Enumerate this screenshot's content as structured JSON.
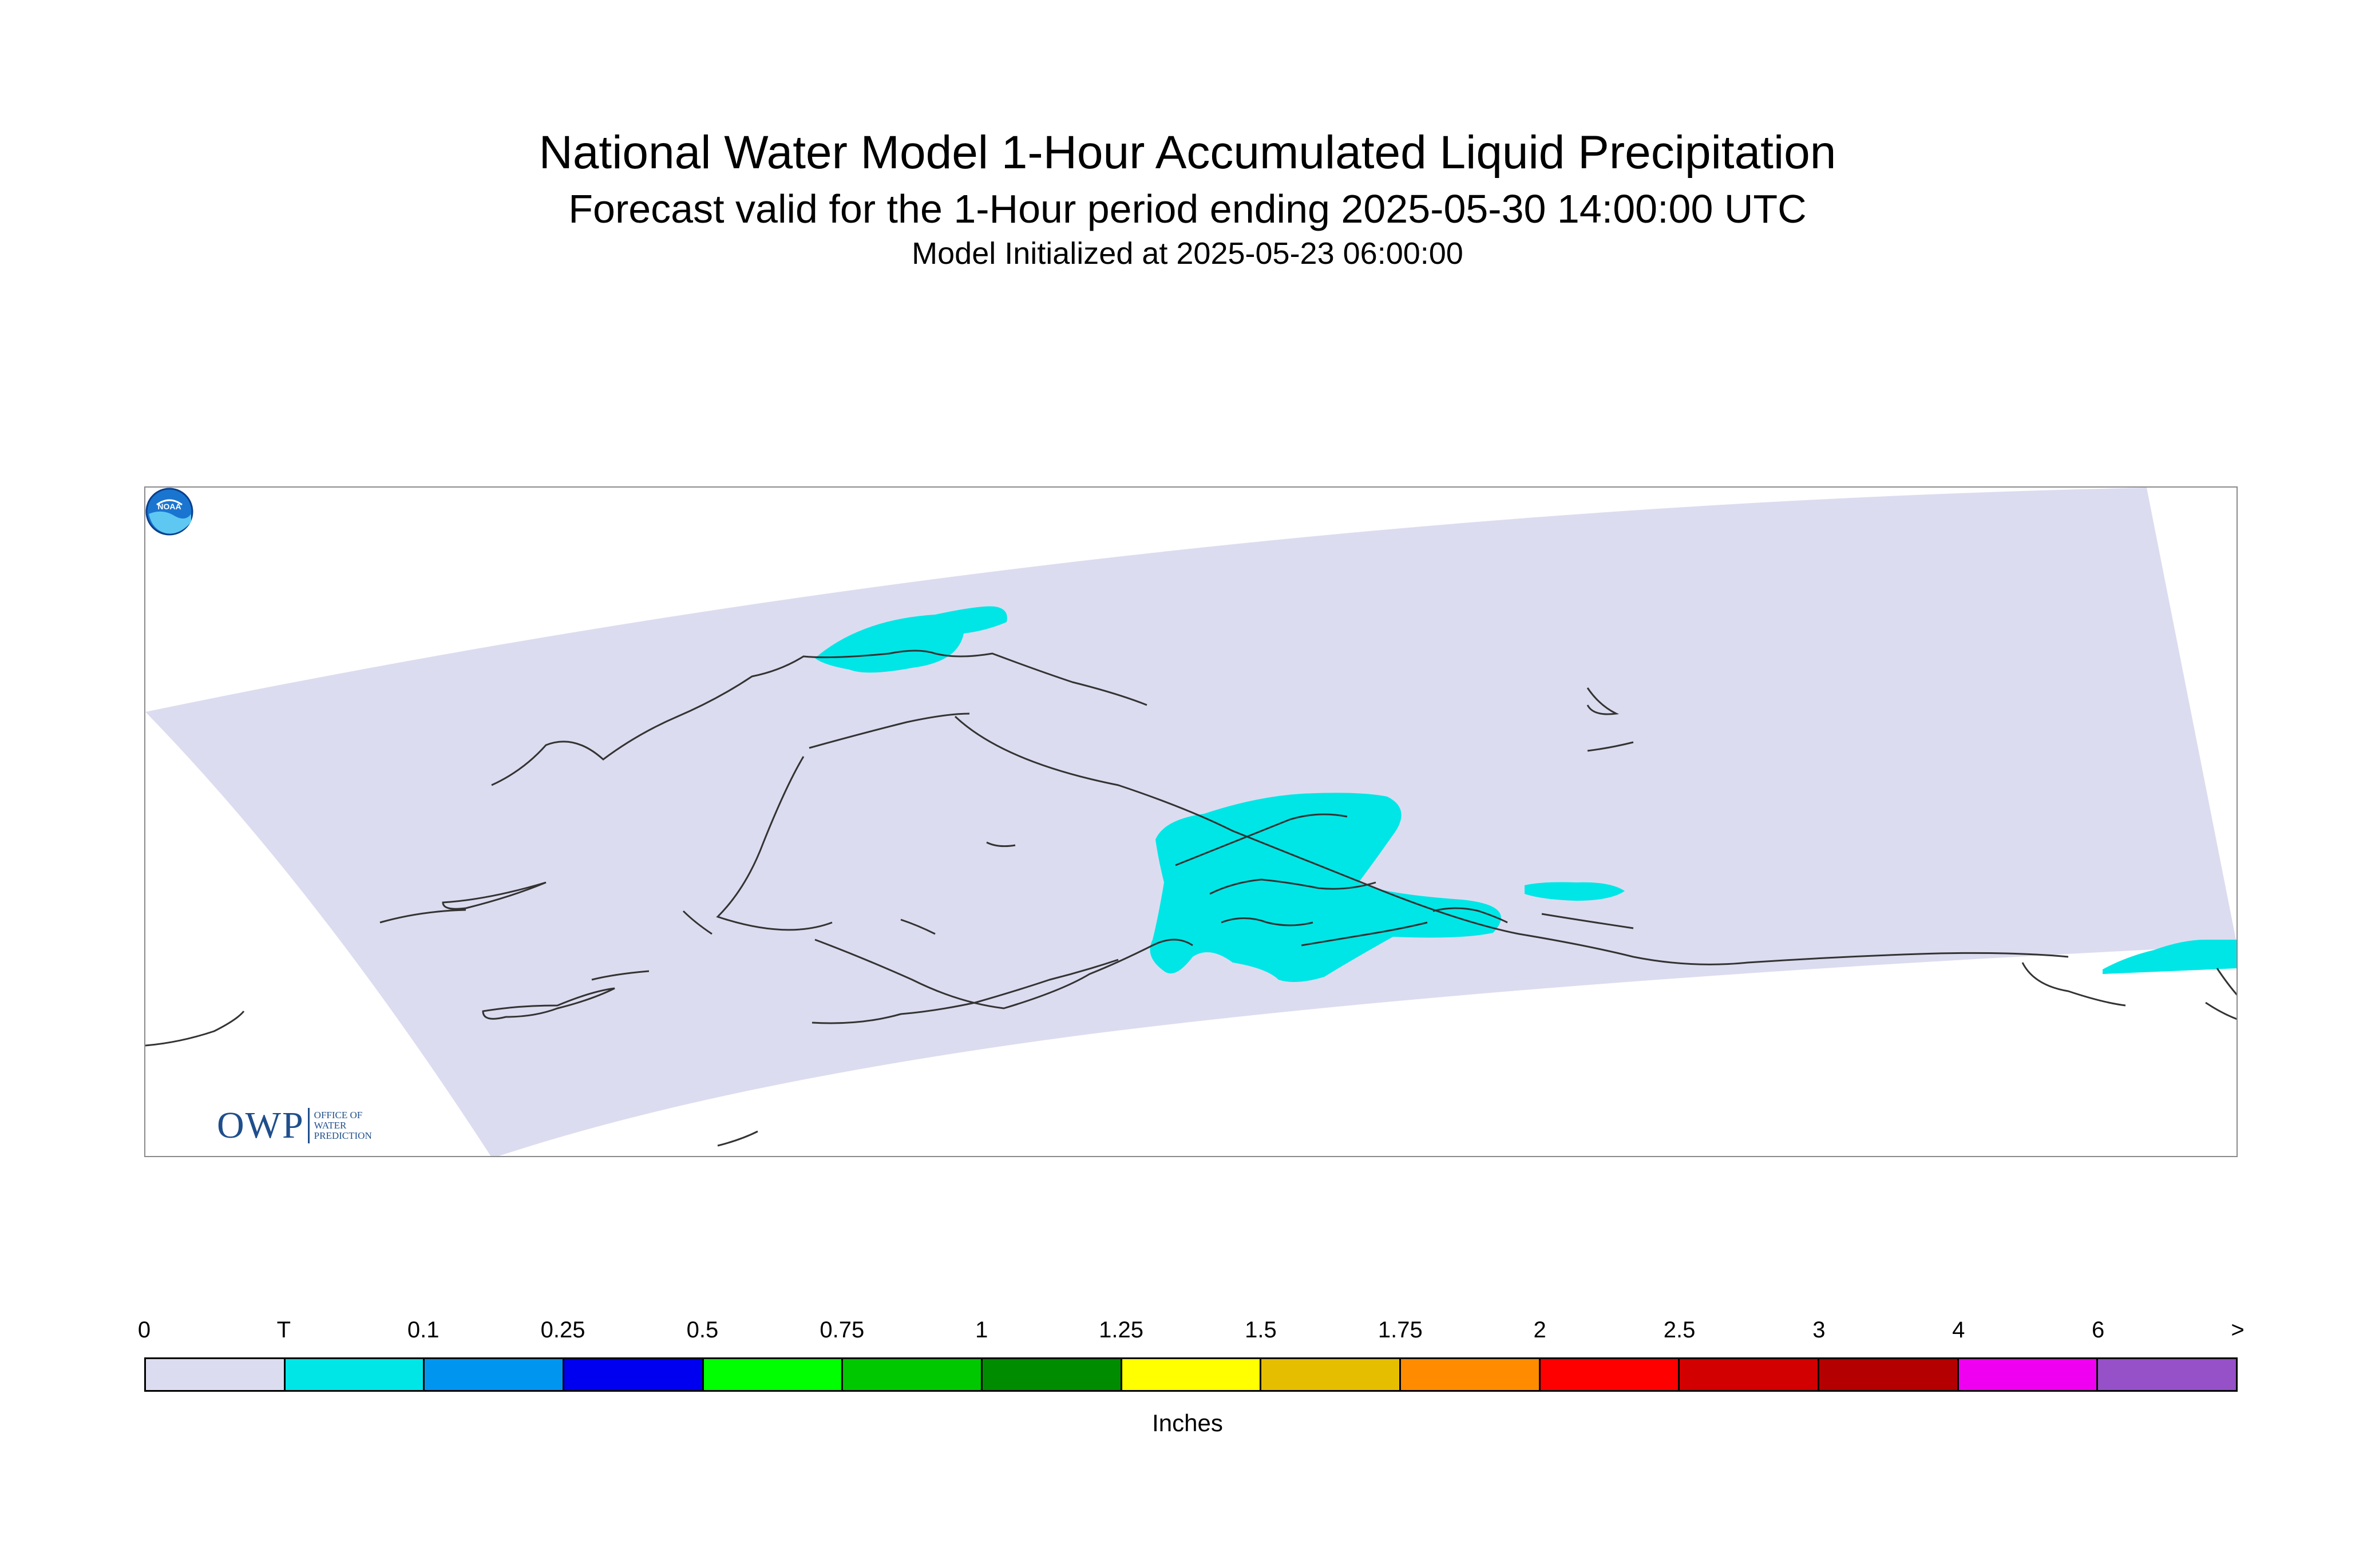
{
  "title": "National Water Model 1-Hour Accumulated Liquid Precipitation",
  "subtitle": "Forecast valid for the 1-Hour period ending 2025-05-30 14:00:00 UTC",
  "init_line": "Model Initialized at 2025-05-23 06:00:00",
  "colorbar": {
    "units_label": "Inches",
    "tick_labels": [
      "0",
      "T",
      "0.1",
      "0.25",
      "0.5",
      "0.75",
      "1",
      "1.25",
      "1.5",
      "1.75",
      "2",
      "2.5",
      "3",
      "4",
      "6",
      ">"
    ],
    "bin_colors": [
      "#dcdcf0",
      "#00e6e6",
      "#0096f0",
      "#0000f0",
      "#00ff00",
      "#00c800",
      "#008c00",
      "#ffff00",
      "#e6be00",
      "#ff8c00",
      "#ff0000",
      "#d20000",
      "#b40000",
      "#f000f0",
      "#9650c8"
    ]
  },
  "map": {
    "domain_fill": "#dcdcf0",
    "precip_fill": "#00e6e6",
    "coast_color": "#333333"
  },
  "logos": {
    "owp_initials": "OWP",
    "owp_words": [
      "OFFICE OF",
      "WATER",
      "PREDICTION"
    ],
    "noaa_text": "NOAA"
  }
}
